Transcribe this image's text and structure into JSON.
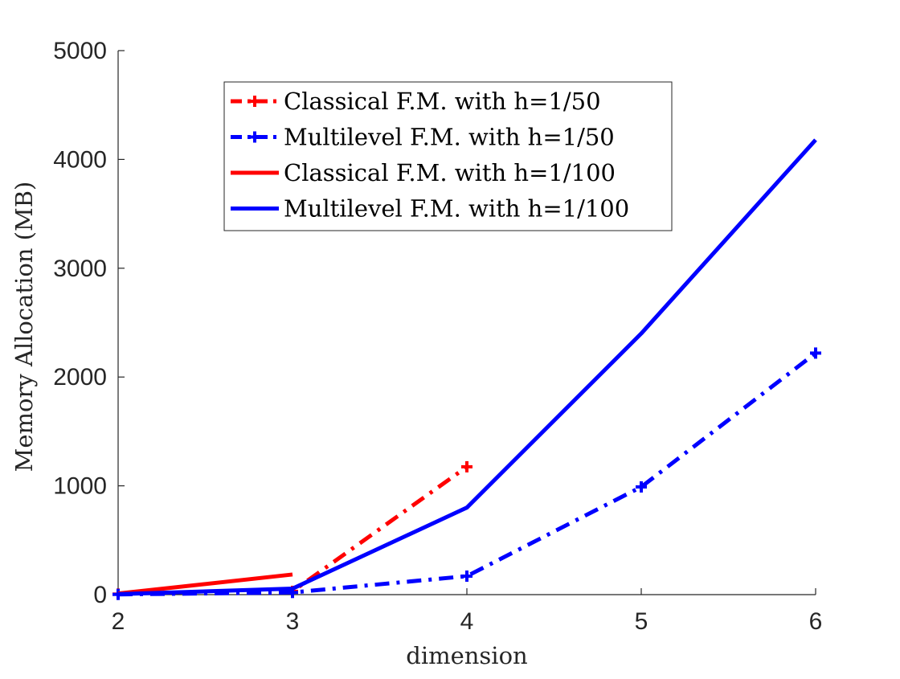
{
  "chart_data": {
    "type": "line",
    "title": "",
    "xlabel": "dimension",
    "ylabel": "Memory Allocation (MB)",
    "xlim": [
      2,
      6
    ],
    "ylim": [
      0,
      5000
    ],
    "x_ticks": [
      2,
      3,
      4,
      5,
      6
    ],
    "y_ticks": [
      0,
      1000,
      2000,
      3000,
      4000,
      5000
    ],
    "grid": false,
    "legend_position": "upper-center",
    "series": [
      {
        "name": "Classical F.M. with h=1/50",
        "color": "#FF0000",
        "style": "dashdot",
        "marker": "plus",
        "x": [
          2,
          3,
          4
        ],
        "y": [
          5,
          30,
          1175
        ]
      },
      {
        "name": "Multilevel F.M. with h=1/50",
        "color": "#0000FF",
        "style": "dashdot",
        "marker": "plus",
        "x": [
          2,
          3,
          4,
          5,
          6
        ],
        "y": [
          2,
          20,
          170,
          990,
          2220
        ]
      },
      {
        "name": "Classical F.M. with h=1/100",
        "color": "#FF0000",
        "style": "solid",
        "marker": "none",
        "x": [
          2,
          3
        ],
        "y": [
          10,
          185
        ]
      },
      {
        "name": "Multilevel F.M. with h=1/100",
        "color": "#0000FF",
        "style": "solid",
        "marker": "none",
        "x": [
          2,
          3,
          4,
          5,
          6
        ],
        "y": [
          5,
          55,
          800,
          2400,
          4180
        ]
      }
    ]
  }
}
